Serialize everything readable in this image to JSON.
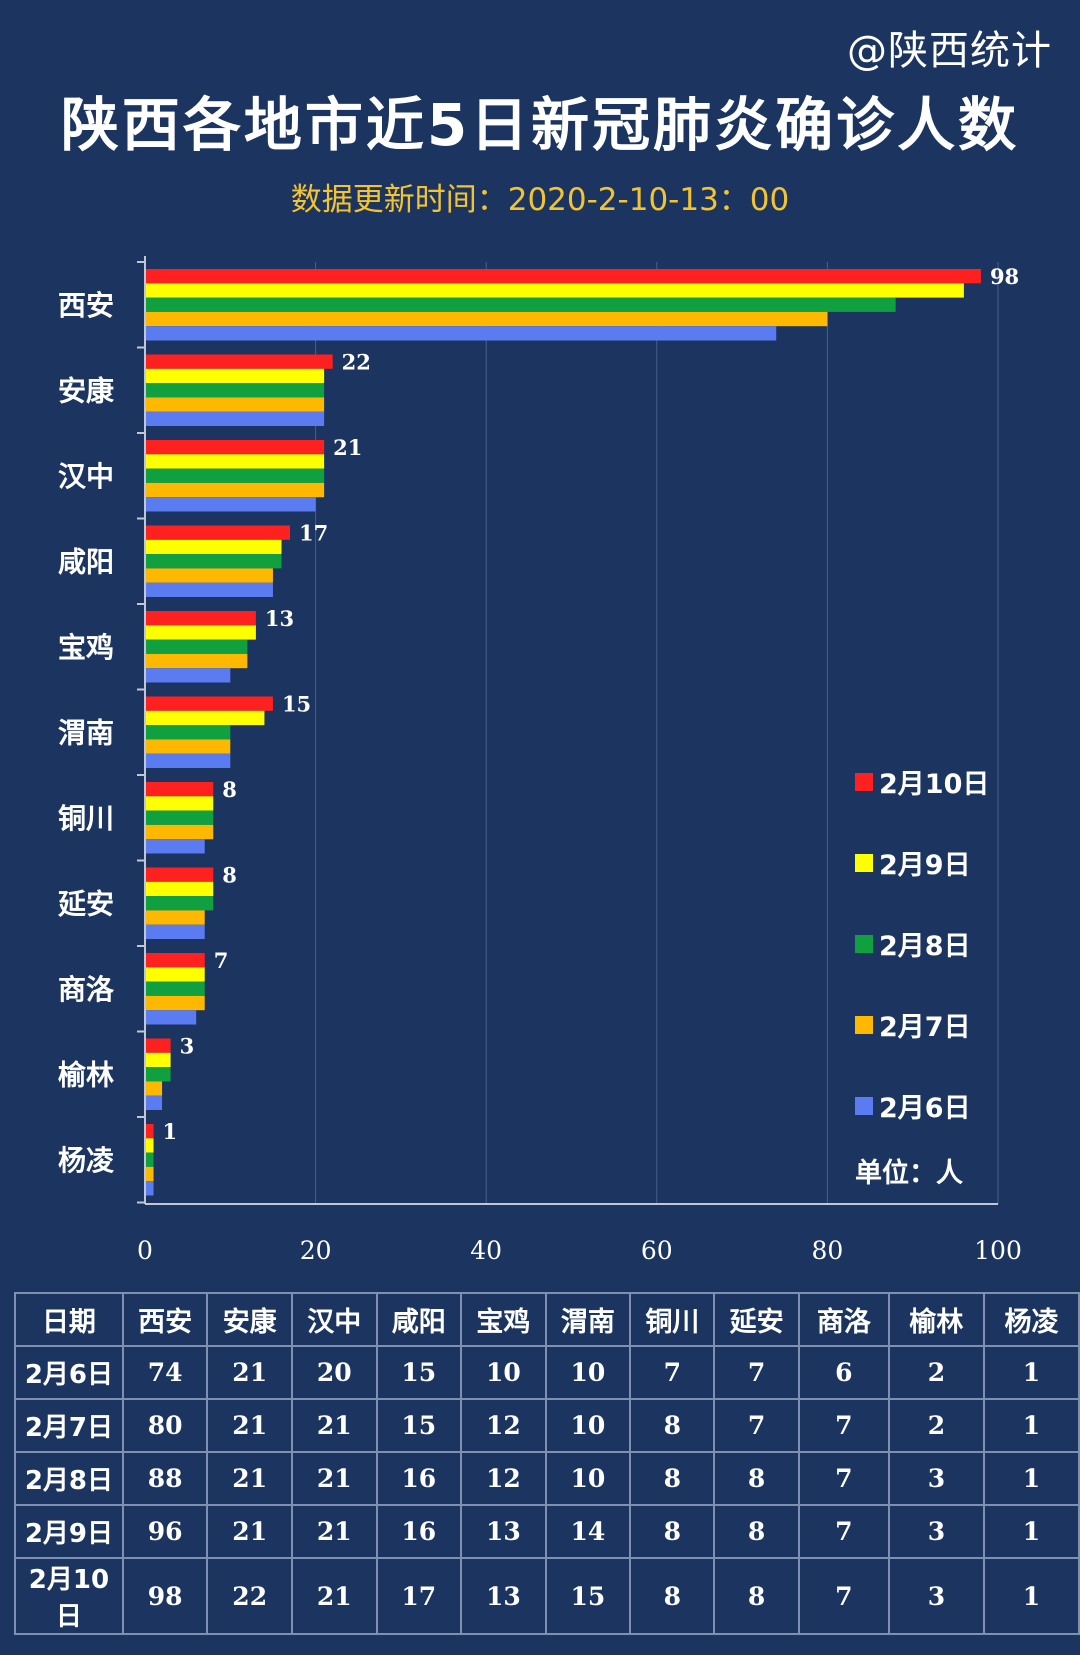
{
  "header": {
    "handle": "@陕西统计",
    "title": "陕西各地市近5日新冠肺炎确诊人数",
    "subtitle": "数据更新时间：2020-2-10-13：00"
  },
  "chart_data": {
    "type": "bar",
    "orientation": "horizontal",
    "title": "陕西各地市近5日新冠肺炎确诊人数",
    "categories": [
      "西安",
      "安康",
      "汉中",
      "咸阳",
      "宝鸡",
      "渭南",
      "铜川",
      "延安",
      "商洛",
      "榆林",
      "杨凌"
    ],
    "series": [
      {
        "name": "2月10日",
        "color": "#ff2020",
        "values": [
          98,
          22,
          21,
          17,
          13,
          15,
          8,
          8,
          7,
          3,
          1
        ]
      },
      {
        "name": "2月9日",
        "color": "#ffff00",
        "values": [
          96,
          21,
          21,
          16,
          13,
          14,
          8,
          8,
          7,
          3,
          1
        ]
      },
      {
        "name": "2月8日",
        "color": "#10a040",
        "values": [
          88,
          21,
          21,
          16,
          12,
          10,
          8,
          8,
          7,
          3,
          1
        ]
      },
      {
        "name": "2月7日",
        "color": "#ffb800",
        "values": [
          80,
          21,
          21,
          15,
          12,
          10,
          8,
          7,
          7,
          2,
          1
        ]
      },
      {
        "name": "2月6日",
        "color": "#5b7cf0",
        "values": [
          74,
          21,
          20,
          15,
          10,
          10,
          7,
          7,
          6,
          2,
          1
        ]
      }
    ],
    "data_labels_series": "2月10日",
    "xlim": [
      0,
      100
    ],
    "x_ticks": [
      0,
      20,
      40,
      60,
      80,
      100
    ],
    "grid": true,
    "legend_position": "right",
    "unit_note": "单位：人"
  },
  "table": {
    "headers": [
      "日期",
      "西安",
      "安康",
      "汉中",
      "咸阳",
      "宝鸡",
      "渭南",
      "铜川",
      "延安",
      "商洛",
      "榆林",
      "杨凌"
    ],
    "rows": [
      [
        "2月6日",
        "74",
        "21",
        "20",
        "15",
        "10",
        "10",
        "7",
        "7",
        "6",
        "2",
        "1"
      ],
      [
        "2月7日",
        "80",
        "21",
        "21",
        "15",
        "12",
        "10",
        "8",
        "7",
        "7",
        "2",
        "1"
      ],
      [
        "2月8日",
        "88",
        "21",
        "21",
        "16",
        "12",
        "10",
        "8",
        "8",
        "7",
        "3",
        "1"
      ],
      [
        "2月9日",
        "96",
        "21",
        "21",
        "16",
        "13",
        "14",
        "8",
        "8",
        "7",
        "3",
        "1"
      ],
      [
        "2月10日",
        "98",
        "22",
        "21",
        "17",
        "13",
        "15",
        "8",
        "8",
        "7",
        "3",
        "1"
      ]
    ]
  }
}
